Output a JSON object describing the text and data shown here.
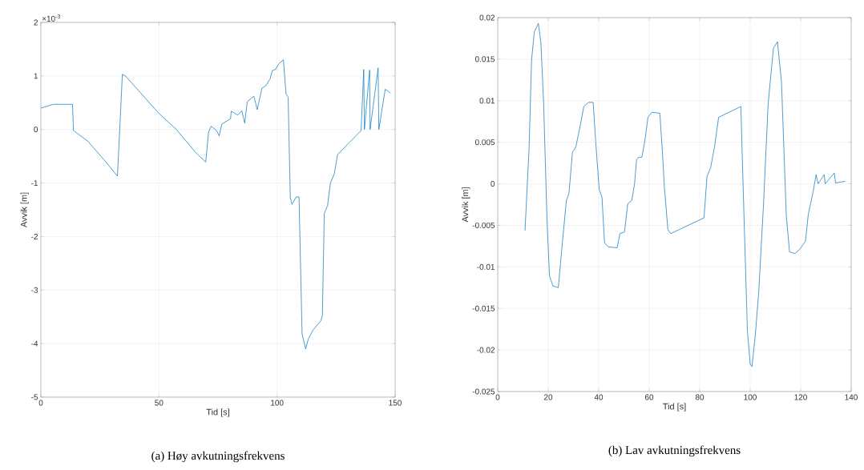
{
  "chart_data": [
    {
      "type": "line",
      "xlabel": "Tid [s]",
      "ylabel": "Avvik [m]",
      "x": [
        0.1,
        5.2,
        13.4,
        13.8,
        19.9,
        26.8,
        32.4,
        33.2,
        34.5,
        35.8,
        50,
        57.4,
        65.3,
        69.8,
        71,
        72.1,
        74.4,
        75.5,
        76.6,
        80.3,
        80.6,
        83.4,
        85.1,
        86.3,
        87.4,
        90.2,
        91.6,
        93.6,
        95.3,
        97.1,
        98,
        99.3,
        100.8,
        102.7,
        103.8,
        104.7,
        105.6,
        106.3,
        108.1,
        109.3,
        110.6,
        112.1,
        113.2,
        115.2,
        118.6,
        119.2,
        120,
        121.4,
        122.6,
        124.3,
        125.6,
        130,
        135.6,
        136.7,
        137,
        139.2,
        139.4,
        142.8,
        143.1,
        145.8,
        146.9,
        148
      ],
      "series": [
        {
          "color": "#0072bd",
          "values": [
            0.4,
            0.47,
            0.47,
            -0.02,
            -0.22,
            -0.57,
            -0.87,
            -0.17,
            1.03,
            1.0,
            0.3,
            0,
            -0.42,
            -0.61,
            -0.05,
            0.06,
            -0.02,
            -0.12,
            0.1,
            0.2,
            0.34,
            0.27,
            0.35,
            0.12,
            0.52,
            0.62,
            0.37,
            0.77,
            0.82,
            0.95,
            1.1,
            1.12,
            1.23,
            1.3,
            0.67,
            0.6,
            -1.27,
            -1.4,
            -1.26,
            -1.26,
            -3.82,
            -4.1,
            -3.92,
            -3.75,
            -3.57,
            -3.47,
            -1.57,
            -1.42,
            -1.0,
            -0.82,
            -0.47,
            -0.27,
            -0.02,
            1.12,
            0,
            1.11,
            0,
            1.15,
            0,
            0.75,
            0.72,
            0.68
          ]
        }
      ],
      "xlim": [
        0,
        150
      ],
      "ylim": [
        -5,
        2
      ],
      "xticks": [
        0,
        50,
        100,
        150
      ],
      "yticks": [
        -5,
        -4,
        -3,
        -2,
        -1,
        0,
        1,
        2
      ],
      "grid": true,
      "annotations": [
        "×10$^{-3}$",
        "(a) Høy avkutningsfrekvens"
      ]
    },
    {
      "type": "line",
      "xlabel": "Tid [s]",
      "ylabel": "Avvik [m]",
      "x": [
        10.8,
        12.4,
        13.4,
        14.5,
        16.1,
        17.1,
        18.2,
        19.5,
        20.5,
        21.9,
        24.0,
        25.6,
        27.2,
        28.2,
        29.6,
        30.9,
        32.5,
        34.1,
        36.0,
        37.8,
        38.8,
        40.2,
        41.3,
        42.3,
        43.8,
        47.3,
        48.4,
        50.2,
        51.5,
        53.1,
        54.2,
        55.0,
        55.8,
        57.1,
        58.4,
        59.5,
        61.1,
        64.2,
        65.3,
        66.0,
        67.4,
        68.5,
        81.7,
        82.9,
        84.3,
        85.9,
        87.5,
        96.3,
        97.6,
        98.9,
        100.0,
        100.7,
        102.0,
        103.4,
        105.3,
        107.1,
        109.2,
        110.8,
        112.4,
        114.3,
        115.6,
        117.7,
        119.6,
        121.9,
        123.0,
        124.9,
        126.1,
        126.9,
        129.3,
        129.7,
        133.3,
        133.8,
        137.6
      ],
      "series": [
        {
          "color": "#0072bd",
          "values": [
            -0.00565,
            0.0041,
            0.0149,
            0.0183,
            0.0193,
            0.017,
            0.0096,
            -0.0042,
            -0.0111,
            -0.0123,
            -0.0125,
            -0.0071,
            -0.002,
            -0.0012,
            0.0038,
            0.0044,
            0.0067,
            0.0093,
            0.0098,
            0.0098,
            0.0051,
            -0.0007,
            -0.0016,
            -0.0071,
            -0.0076,
            -0.0077,
            -0.006,
            -0.0058,
            -0.0024,
            -0.002,
            0,
            0.0029,
            0.0032,
            0.0032,
            0.0054,
            0.008,
            0.0086,
            0.0085,
            0.0035,
            -0.0004,
            -0.0055,
            -0.006,
            -0.0041,
            0.0009,
            0.0019,
            0.0045,
            0.008,
            0.0093,
            -0.0045,
            -0.0177,
            -0.0217,
            -0.022,
            -0.0183,
            -0.0129,
            -0.0023,
            0.0096,
            0.0163,
            0.0171,
            0.0122,
            -0.0039,
            -0.0082,
            -0.0084,
            -0.0079,
            -0.0069,
            -0.0037,
            -0.001,
            0.0011,
            0,
            0.0011,
            0,
            0.0013,
            0.0001,
            0.0003
          ]
        }
      ],
      "xlim": [
        0,
        140
      ],
      "ylim": [
        -0.025,
        0.02
      ],
      "xticks": [
        0,
        20,
        40,
        60,
        80,
        100,
        120,
        140
      ],
      "yticks": [
        -0.025,
        -0.02,
        -0.015,
        -0.01,
        -0.005,
        0,
        0.005,
        0.01,
        0.015,
        0.02
      ],
      "grid": true,
      "annotations": [
        "(b) Lav avkutningsfrekvens"
      ]
    }
  ]
}
